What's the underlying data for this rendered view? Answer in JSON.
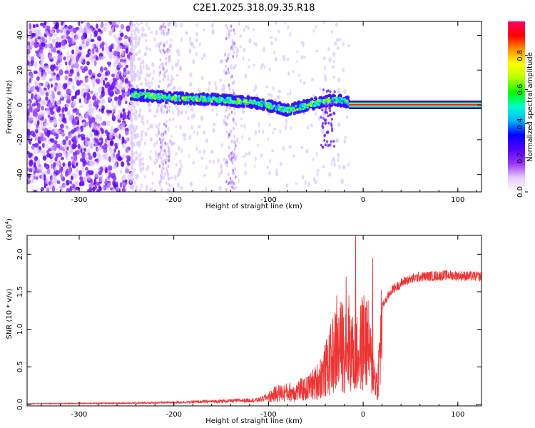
{
  "title": "C2E1.2025.318.09.35.R18",
  "chart_data": [
    {
      "type": "heatmap",
      "xlabel": "Height of straight line (km)",
      "ylabel": "Frequency (Hz)",
      "xlim": [
        -355,
        125
      ],
      "ylim": [
        -50,
        48
      ],
      "x_ticks": [
        -300,
        -200,
        -100,
        0,
        100
      ],
      "y_ticks": [
        -40,
        -20,
        0,
        20,
        40
      ],
      "colorbar": {
        "label": "Normalized spectral amplitude",
        "range": [
          0,
          1
        ],
        "ticks": [
          "0.0",
          "0.2",
          "0.4",
          "0.6",
          "0.8"
        ],
        "colors": [
          "#ffffff",
          "#e6ccff",
          "#9933ff",
          "#5500ff",
          "#0000ff",
          "#00b4ff",
          "#00ffc8",
          "#00ff00",
          "#b4ff00",
          "#ffff00",
          "#ff9600",
          "#ff0000",
          "#ff0064"
        ]
      },
      "features": {
        "noise_region_x": [
          -355,
          -245
        ],
        "noise_columns_x": [
          -210,
          -140
        ],
        "signal_ridge": [
          {
            "x": -245,
            "f": 6
          },
          {
            "x": -200,
            "f": 4
          },
          {
            "x": -150,
            "f": 3
          },
          {
            "x": -110,
            "f": 1
          },
          {
            "x": -80,
            "f": -3
          },
          {
            "x": -50,
            "f": 1
          },
          {
            "x": -30,
            "f": 3
          },
          {
            "x": -10,
            "f": 1
          },
          {
            "x": 0,
            "f": 2
          },
          {
            "x": 120,
            "f": 0
          }
        ],
        "carrier_line_x": [
          -15,
          125
        ],
        "carrier_line_f": 0
      }
    },
    {
      "type": "line",
      "xlabel": "Height of straight line (km)",
      "ylabel": "SNR (10 * v/v)",
      "y_scale_label": "(x10",
      "y_scale_exponent": "4",
      "xlim": [
        -355,
        125
      ],
      "ylim": [
        -0.02,
        2.25
      ],
      "x_ticks": [
        -300,
        -200,
        -100,
        0,
        100
      ],
      "y_ticks": [
        "0.0",
        "0.5",
        "1.0",
        "1.5",
        "2.0"
      ],
      "series": [
        {
          "color": "#ee3333",
          "envelope": [
            {
              "x": -355,
              "y": 0.01
            },
            {
              "x": -250,
              "y": 0.02
            },
            {
              "x": -200,
              "y": 0.03
            },
            {
              "x": -150,
              "y": 0.05
            },
            {
              "x": -110,
              "y": 0.07
            },
            {
              "x": -100,
              "y": 0.12
            },
            {
              "x": -90,
              "y": 0.18
            },
            {
              "x": -75,
              "y": 0.2
            },
            {
              "x": -60,
              "y": 0.25
            },
            {
              "x": -50,
              "y": 0.35
            },
            {
              "x": -40,
              "y": 0.55
            },
            {
              "x": -30,
              "y": 0.85
            },
            {
              "x": -22,
              "y": 0.95
            },
            {
              "x": -15,
              "y": 1.0
            },
            {
              "x": -10,
              "y": 0.75
            },
            {
              "x": -5,
              "y": 0.8
            },
            {
              "x": 0,
              "y": 1.05
            },
            {
              "x": 5,
              "y": 0.95
            },
            {
              "x": 10,
              "y": 0.55
            },
            {
              "x": 15,
              "y": 0.3
            },
            {
              "x": 20,
              "y": 1.3
            },
            {
              "x": 30,
              "y": 1.52
            },
            {
              "x": 45,
              "y": 1.65
            },
            {
              "x": 60,
              "y": 1.7
            },
            {
              "x": 90,
              "y": 1.72
            },
            {
              "x": 125,
              "y": 1.7
            }
          ],
          "spikes": [
            {
              "x": -8,
              "y": 2.25
            },
            {
              "x": -18,
              "y": 1.7
            },
            {
              "x": -28,
              "y": 1.45
            },
            {
              "x": 10,
              "y": 1.95
            },
            {
              "x": 3,
              "y": 1.3
            }
          ]
        }
      ]
    }
  ]
}
